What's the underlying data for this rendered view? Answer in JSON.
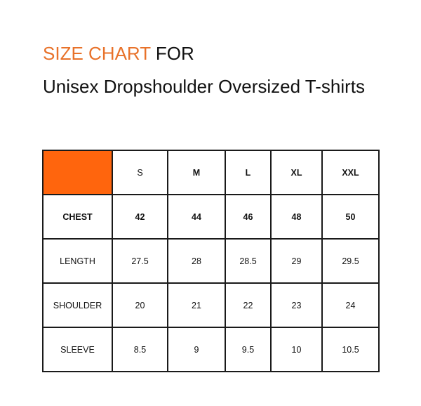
{
  "title": {
    "highlight": "SIZE CHART",
    "rest": "FOR",
    "subtitle": "Unisex Dropshoulder Oversized T-shirts",
    "accent_color": "#e8722a"
  },
  "table": {
    "corner_color": "#ff650d",
    "headers": [
      "S",
      "M",
      "L",
      "XL",
      "XXL"
    ],
    "rows": [
      {
        "label": "CHEST",
        "values": [
          "42",
          "44",
          "46",
          "48",
          "50"
        ]
      },
      {
        "label": "LENGTH",
        "values": [
          "27.5",
          "28",
          "28.5",
          "29",
          "29.5"
        ]
      },
      {
        "label": "SHOULDER",
        "values": [
          "20",
          "21",
          "22",
          "23",
          "24"
        ]
      },
      {
        "label": "SLEEVE",
        "values": [
          "8.5",
          "9",
          "9.5",
          "10",
          "10.5"
        ]
      }
    ]
  }
}
